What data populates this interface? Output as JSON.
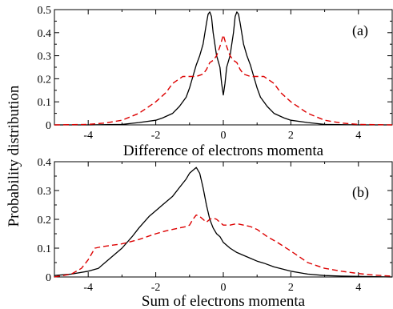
{
  "ylabel_shared": "Probability distribution",
  "chart_data": [
    {
      "type": "line",
      "panel_label": "(a)",
      "xlabel": "Difference of electrons momenta",
      "xlim": [
        -5,
        5
      ],
      "ylim": [
        0,
        0.5
      ],
      "xticks": [
        -4,
        -2,
        0,
        2,
        4
      ],
      "xtick_labels": [
        "-4",
        "-2",
        "0",
        "2",
        "4"
      ],
      "yticks": [
        0,
        0.1,
        0.2,
        0.3,
        0.4,
        0.5
      ],
      "ytick_labels": [
        "0",
        "0.1",
        "0.2",
        "0.3",
        "0.4",
        "0.5"
      ],
      "grid": false,
      "series": [
        {
          "style": "solid",
          "color": "#000000",
          "x": [
            -5,
            -4,
            -3,
            -2.5,
            -2,
            -1.8,
            -1.5,
            -1.3,
            -1.1,
            -1.0,
            -0.9,
            -0.8,
            -0.7,
            -0.6,
            -0.5,
            -0.45,
            -0.4,
            -0.35,
            -0.3,
            -0.2,
            -0.1,
            -0.05,
            0,
            0.05,
            0.1,
            0.2,
            0.3,
            0.35,
            0.4,
            0.45,
            0.5,
            0.6,
            0.7,
            0.8,
            0.9,
            1.0,
            1.1,
            1.3,
            1.5,
            1.8,
            2,
            2.5,
            3,
            4,
            5
          ],
          "y": [
            0,
            0,
            0.002,
            0.01,
            0.02,
            0.03,
            0.05,
            0.08,
            0.12,
            0.16,
            0.21,
            0.26,
            0.3,
            0.35,
            0.44,
            0.48,
            0.49,
            0.47,
            0.4,
            0.3,
            0.25,
            0.18,
            0.13,
            0.18,
            0.25,
            0.3,
            0.4,
            0.47,
            0.49,
            0.48,
            0.44,
            0.35,
            0.3,
            0.26,
            0.21,
            0.16,
            0.12,
            0.08,
            0.05,
            0.03,
            0.02,
            0.01,
            0.002,
            0,
            0
          ]
        },
        {
          "style": "dashed",
          "color": "#dd0000",
          "x": [
            -5,
            -4,
            -3.5,
            -3,
            -2.5,
            -2,
            -1.7,
            -1.5,
            -1.3,
            -1.2,
            -1.1,
            -1.0,
            -0.8,
            -0.6,
            -0.5,
            -0.4,
            -0.3,
            -0.2,
            -0.1,
            0,
            0.1,
            0.2,
            0.3,
            0.4,
            0.5,
            0.6,
            0.8,
            1.0,
            1.1,
            1.2,
            1.3,
            1.5,
            1.7,
            2,
            2.5,
            3,
            3.5,
            4,
            5
          ],
          "y": [
            0,
            0.002,
            0.008,
            0.02,
            0.05,
            0.1,
            0.14,
            0.18,
            0.2,
            0.21,
            0.21,
            0.21,
            0.21,
            0.22,
            0.24,
            0.27,
            0.28,
            0.3,
            0.34,
            0.39,
            0.34,
            0.3,
            0.28,
            0.27,
            0.24,
            0.22,
            0.21,
            0.21,
            0.21,
            0.21,
            0.2,
            0.18,
            0.14,
            0.1,
            0.05,
            0.02,
            0.008,
            0.002,
            0
          ]
        }
      ]
    },
    {
      "type": "line",
      "panel_label": "(b)",
      "xlabel": "Sum of electrons momenta",
      "xlim": [
        -5,
        5
      ],
      "ylim": [
        0,
        0.4
      ],
      "xticks": [
        -4,
        -2,
        0,
        2,
        4
      ],
      "xtick_labels": [
        "-4",
        "-2",
        "0",
        "2",
        "4"
      ],
      "yticks": [
        0,
        0.1,
        0.2,
        0.3,
        0.4
      ],
      "ytick_labels": [
        "0",
        "0.1",
        "0.2",
        "0.3",
        "0.4"
      ],
      "grid": false,
      "series": [
        {
          "style": "solid",
          "color": "#000000",
          "x": [
            -5,
            -4.5,
            -4,
            -3.7,
            -3.5,
            -3,
            -2.7,
            -2.5,
            -2.2,
            -2.0,
            -1.8,
            -1.5,
            -1.3,
            -1.1,
            -1.0,
            -0.9,
            -0.8,
            -0.7,
            -0.6,
            -0.5,
            -0.4,
            -0.3,
            -0.2,
            -0.1,
            0,
            0.2,
            0.4,
            0.6,
            0.8,
            1.0,
            1.2,
            1.5,
            2.0,
            2.5,
            3.0,
            3.5,
            4.0,
            5
          ],
          "y": [
            0.005,
            0.01,
            0.02,
            0.03,
            0.05,
            0.1,
            0.14,
            0.17,
            0.21,
            0.23,
            0.25,
            0.28,
            0.31,
            0.34,
            0.36,
            0.37,
            0.38,
            0.36,
            0.31,
            0.25,
            0.2,
            0.17,
            0.15,
            0.14,
            0.12,
            0.1,
            0.085,
            0.075,
            0.065,
            0.055,
            0.048,
            0.035,
            0.02,
            0.01,
            0.005,
            0.003,
            0.002,
            0
          ]
        },
        {
          "style": "dashed",
          "color": "#dd0000",
          "x": [
            -5,
            -4.5,
            -4.2,
            -4.0,
            -3.8,
            -3.6,
            -3.3,
            -3.0,
            -2.5,
            -2.0,
            -1.7,
            -1.5,
            -1.3,
            -1.1,
            -1.0,
            -0.9,
            -0.8,
            -0.7,
            -0.6,
            -0.5,
            -0.4,
            -0.3,
            -0.2,
            -0.1,
            0,
            0.2,
            0.4,
            0.6,
            0.8,
            1.0,
            1.3,
            1.6,
            2.0,
            2.5,
            3.0,
            3.5,
            4.0,
            4.5,
            5
          ],
          "y": [
            0,
            0.01,
            0.03,
            0.06,
            0.1,
            0.105,
            0.11,
            0.115,
            0.13,
            0.15,
            0.16,
            0.165,
            0.17,
            0.175,
            0.18,
            0.2,
            0.215,
            0.21,
            0.2,
            0.19,
            0.2,
            0.205,
            0.2,
            0.19,
            0.18,
            0.18,
            0.185,
            0.18,
            0.175,
            0.165,
            0.14,
            0.12,
            0.09,
            0.05,
            0.03,
            0.02,
            0.012,
            0.006,
            0.003
          ]
        }
      ]
    }
  ]
}
